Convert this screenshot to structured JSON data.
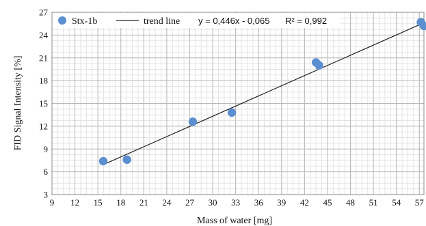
{
  "chart_data": {
    "type": "scatter",
    "xlabel": "Mass of water [mg]",
    "ylabel": "FID Signal Intensity [%]",
    "xlim": [
      9,
      57.6
    ],
    "ylim": [
      3,
      27
    ],
    "x_ticks": [
      9,
      12,
      15,
      18,
      21,
      24,
      27,
      30,
      33,
      36,
      39,
      42,
      45,
      48,
      51,
      54,
      57
    ],
    "y_ticks": [
      3,
      6,
      9,
      12,
      15,
      18,
      21,
      24,
      27
    ],
    "minor_x_step": 0.75,
    "minor_y_step": 0.75,
    "grid": true,
    "series": [
      {
        "name": "Stx-1b",
        "color": "#5b8fd0",
        "x": [
          15.7,
          18.8,
          27.4,
          32.5,
          43.5,
          43.9,
          57.2,
          57.6
        ],
        "y": [
          7.4,
          7.6,
          12.6,
          13.8,
          20.4,
          20.0,
          25.7,
          25.2
        ]
      }
    ],
    "trend_line": {
      "name": "trend line",
      "slope": 0.446,
      "intercept": -0.065,
      "x_range": [
        15.7,
        57.6
      ],
      "color": "#222222",
      "equation": "y = 0,446x - 0,065",
      "r2": "R² = 0,992"
    },
    "legend_position": "top"
  }
}
